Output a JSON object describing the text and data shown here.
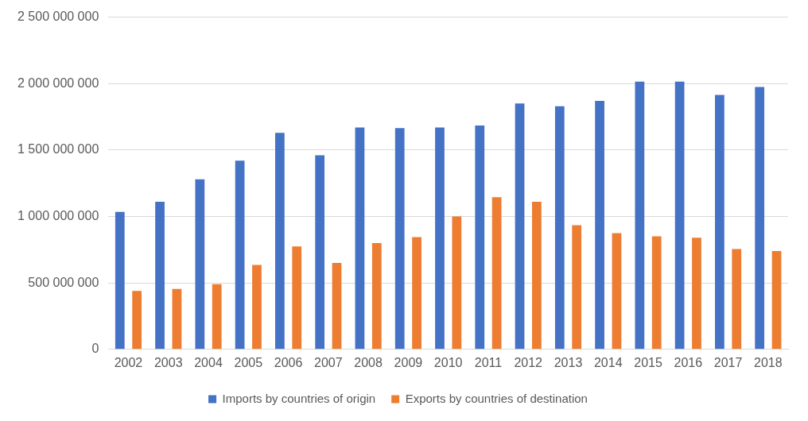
{
  "chart_data": {
    "type": "bar",
    "categories": [
      "2002",
      "2003",
      "2004",
      "2005",
      "2006",
      "2007",
      "2008",
      "2009",
      "2010",
      "2011",
      "2012",
      "2013",
      "2014",
      "2015",
      "2016",
      "2017",
      "2018"
    ],
    "series": [
      {
        "name": "Imports by countries of origin",
        "color": "#4472c4",
        "values": [
          1035000000,
          1110000000,
          1280000000,
          1420000000,
          1630000000,
          1460000000,
          1670000000,
          1665000000,
          1670000000,
          1685000000,
          1850000000,
          1830000000,
          1870000000,
          2015000000,
          2015000000,
          1915000000,
          1975000000
        ]
      },
      {
        "name": "Exports by countries of destination",
        "color": "#ed7d31",
        "values": [
          440000000,
          455000000,
          490000000,
          635000000,
          775000000,
          650000000,
          800000000,
          845000000,
          1000000000,
          1145000000,
          1110000000,
          935000000,
          875000000,
          850000000,
          840000000,
          755000000,
          740000000
        ]
      }
    ],
    "ylim": [
      0,
      2500000000
    ],
    "yticks": [
      0,
      {
        "value": 500000000,
        "label": "500 000 000"
      },
      {
        "value": 1000000000,
        "label": "1 000 000 000"
      },
      {
        "value": 1500000000,
        "label": "1 500 000 000"
      },
      {
        "value": 2000000000,
        "label": "2 000 000 000"
      },
      {
        "value": 2500000000,
        "label": "2 500 000 000"
      }
    ],
    "grid": "y",
    "legend": "bottom"
  }
}
